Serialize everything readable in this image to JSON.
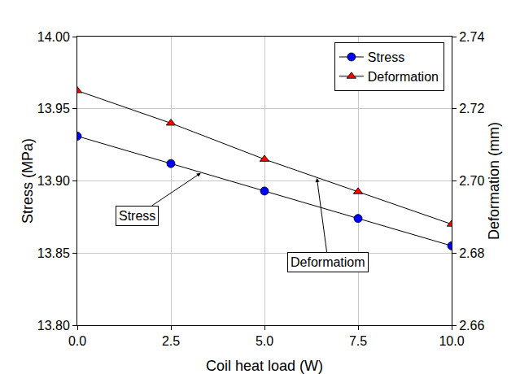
{
  "chart_data": {
    "type": "line",
    "x_label": "Coil heat load (W)",
    "y_label": "Stress (MPa)",
    "y2_label": "Deformation (mm)",
    "x": [
      0,
      2.5,
      5,
      7.5,
      10
    ],
    "series": [
      {
        "name": "Stress",
        "color": "#0000ff",
        "marker": "circle",
        "values": [
          13.931,
          13.912,
          13.893,
          13.874,
          13.855
        ]
      },
      {
        "name": "Deformation",
        "color": "#ff0000",
        "marker": "triangle-up",
        "axis": "y2",
        "values": [
          2.725,
          2.716,
          2.706,
          2.697,
          2.688
        ]
      }
    ],
    "xlim": [
      0,
      10
    ],
    "xticks": [
      {
        "value": 0,
        "label": "0.0"
      },
      2.5,
      {
        "value": 5,
        "label": "5.0"
      },
      7.5,
      {
        "value": 10,
        "label": "10.0"
      }
    ],
    "ylim": [
      13.8,
      14.0
    ],
    "yticks": [
      {
        "value": 13.8,
        "label": "13.80"
      },
      13.85,
      {
        "value": 13.9,
        "label": "13.90"
      },
      13.95,
      {
        "value": 14.0,
        "label": "14.00"
      }
    ],
    "y2lim": [
      2.66,
      2.74
    ],
    "y2ticks": [
      2.66,
      2.68,
      {
        "value": 2.7,
        "label": "2.70"
      },
      2.72,
      2.74
    ],
    "annotations": [
      "Stress",
      "Deformatiom"
    ],
    "grid": true,
    "legend": "top right"
  }
}
